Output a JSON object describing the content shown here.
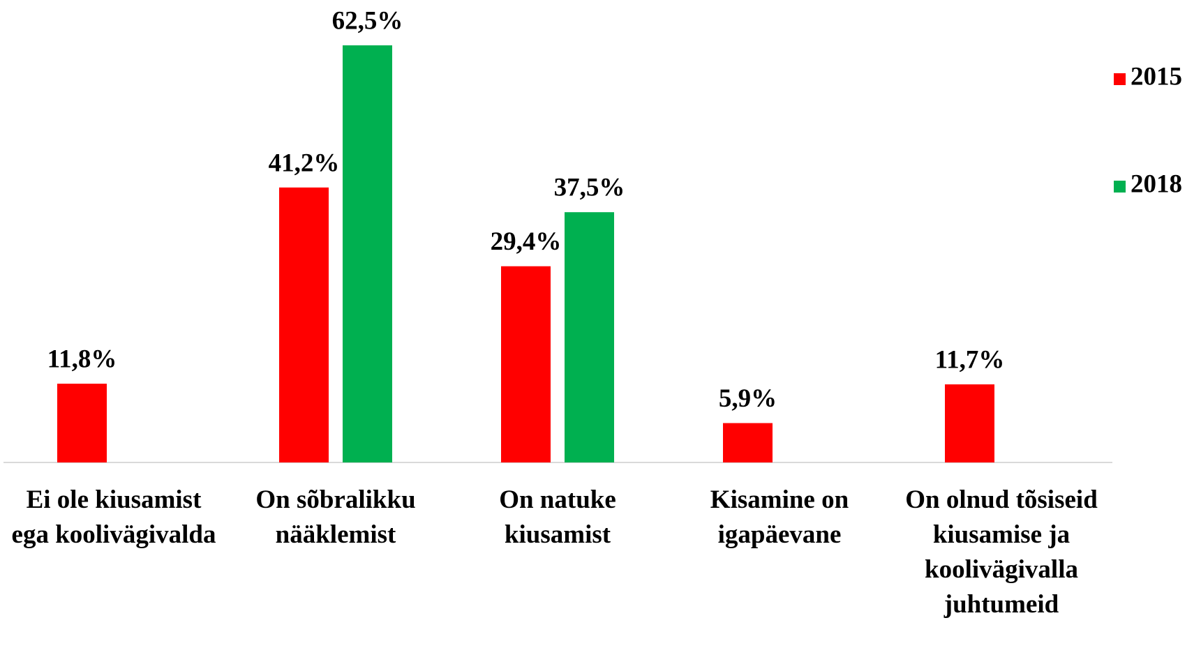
{
  "chart_data": {
    "type": "bar",
    "categories": [
      "Ei ole kiusamist ega koolivägivalda",
      "On sõbralikku nääklemist",
      "On natuke kiusamist",
      "Kisamine on igapäevane",
      "On olnud tõsiseid kiusamise ja koolivägivalla juhtumeid"
    ],
    "series": [
      {
        "name": "2015",
        "color": "#ff0000",
        "values": [
          11.8,
          41.2,
          29.4,
          5.9,
          11.7
        ],
        "value_labels": [
          "11,8%",
          "41,2%",
          "29,4%",
          "5,9%",
          "11,7%"
        ]
      },
      {
        "name": "2018",
        "color": "#00b050",
        "values": [
          null,
          62.5,
          37.5,
          null,
          null
        ],
        "value_labels": [
          null,
          "62,5%",
          "37,5%",
          null,
          null
        ]
      }
    ],
    "legend": "right"
  }
}
